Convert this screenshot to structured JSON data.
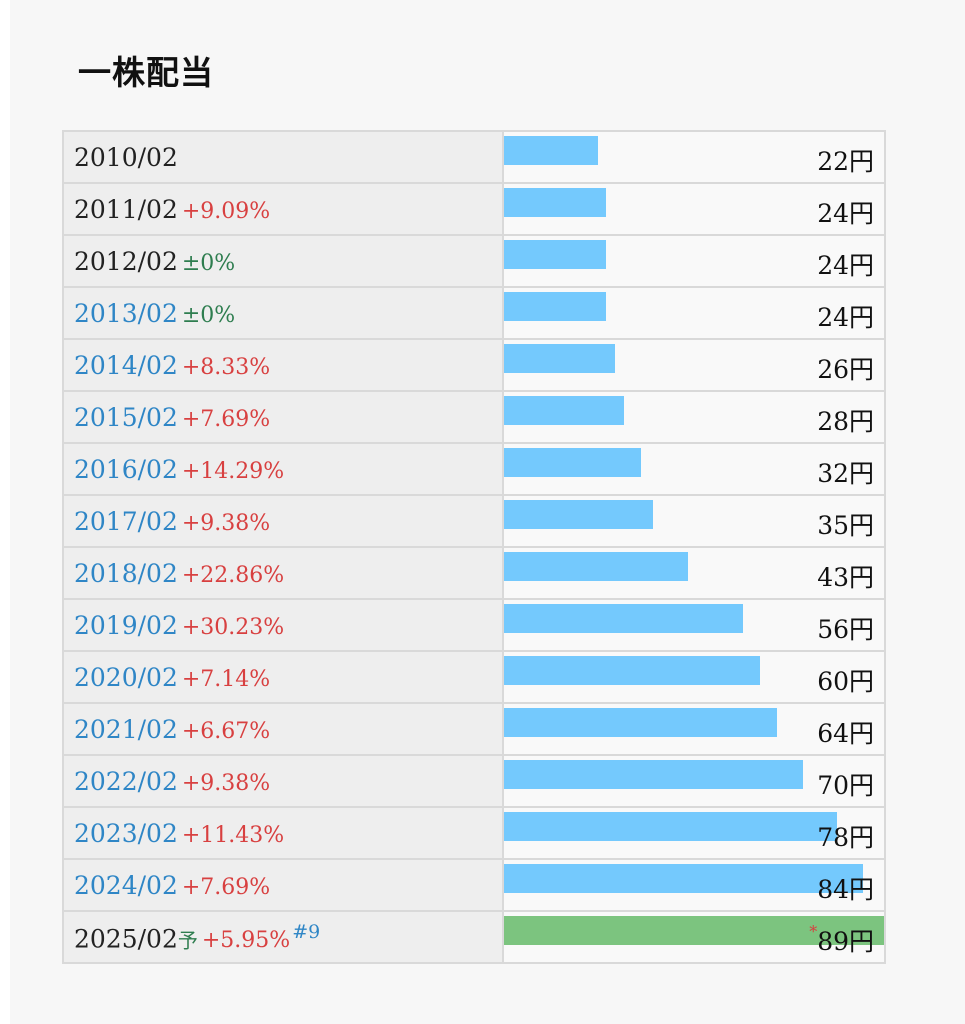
{
  "page_title": "一株配当",
  "chart_data": {
    "type": "bar",
    "title": "一株配当",
    "unit": "円",
    "xlim": [
      0,
      89
    ],
    "rows": [
      {
        "period": "2010/02",
        "change": "",
        "change_type": "",
        "value": 22,
        "value_label": "22円",
        "link": false,
        "forecast": false
      },
      {
        "period": "2011/02",
        "change": "+9.09%",
        "change_type": "up",
        "value": 24,
        "value_label": "24円",
        "link": false,
        "forecast": false
      },
      {
        "period": "2012/02",
        "change": "±0%",
        "change_type": "flat",
        "value": 24,
        "value_label": "24円",
        "link": false,
        "forecast": false
      },
      {
        "period": "2013/02",
        "change": "±0%",
        "change_type": "flat",
        "value": 24,
        "value_label": "24円",
        "link": true,
        "forecast": false
      },
      {
        "period": "2014/02",
        "change": "+8.33%",
        "change_type": "up",
        "value": 26,
        "value_label": "26円",
        "link": true,
        "forecast": false
      },
      {
        "period": "2015/02",
        "change": "+7.69%",
        "change_type": "up",
        "value": 28,
        "value_label": "28円",
        "link": true,
        "forecast": false
      },
      {
        "period": "2016/02",
        "change": "+14.29%",
        "change_type": "up",
        "value": 32,
        "value_label": "32円",
        "link": true,
        "forecast": false
      },
      {
        "period": "2017/02",
        "change": "+9.38%",
        "change_type": "up",
        "value": 35,
        "value_label": "35円",
        "link": true,
        "forecast": false
      },
      {
        "period": "2018/02",
        "change": "+22.86%",
        "change_type": "up",
        "value": 43,
        "value_label": "43円",
        "link": true,
        "forecast": false
      },
      {
        "period": "2019/02",
        "change": "+30.23%",
        "change_type": "up",
        "value": 56,
        "value_label": "56円",
        "link": true,
        "forecast": false
      },
      {
        "period": "2020/02",
        "change": "+7.14%",
        "change_type": "up",
        "value": 60,
        "value_label": "60円",
        "link": true,
        "forecast": false
      },
      {
        "period": "2021/02",
        "change": "+6.67%",
        "change_type": "up",
        "value": 64,
        "value_label": "64円",
        "link": true,
        "forecast": false
      },
      {
        "period": "2022/02",
        "change": "+9.38%",
        "change_type": "up",
        "value": 70,
        "value_label": "70円",
        "link": true,
        "forecast": false
      },
      {
        "period": "2023/02",
        "change": "+11.43%",
        "change_type": "up",
        "value": 78,
        "value_label": "78円",
        "link": true,
        "forecast": false
      },
      {
        "period": "2024/02",
        "change": "+7.69%",
        "change_type": "up",
        "value": 84,
        "value_label": "84円",
        "link": true,
        "forecast": false
      },
      {
        "period": "2025/02",
        "forecast_mark": "予",
        "change": "+5.95%",
        "change_type": "up",
        "note": "#9",
        "value": 89,
        "value_label": "89円",
        "value_prefix": "*",
        "link": false,
        "forecast": true
      }
    ]
  },
  "colors": {
    "bar": "#74c9fd",
    "forecast_bar": "#7cc47f",
    "increase": "#d84040",
    "flat": "#2e7d4f",
    "link": "#2f86c6"
  }
}
